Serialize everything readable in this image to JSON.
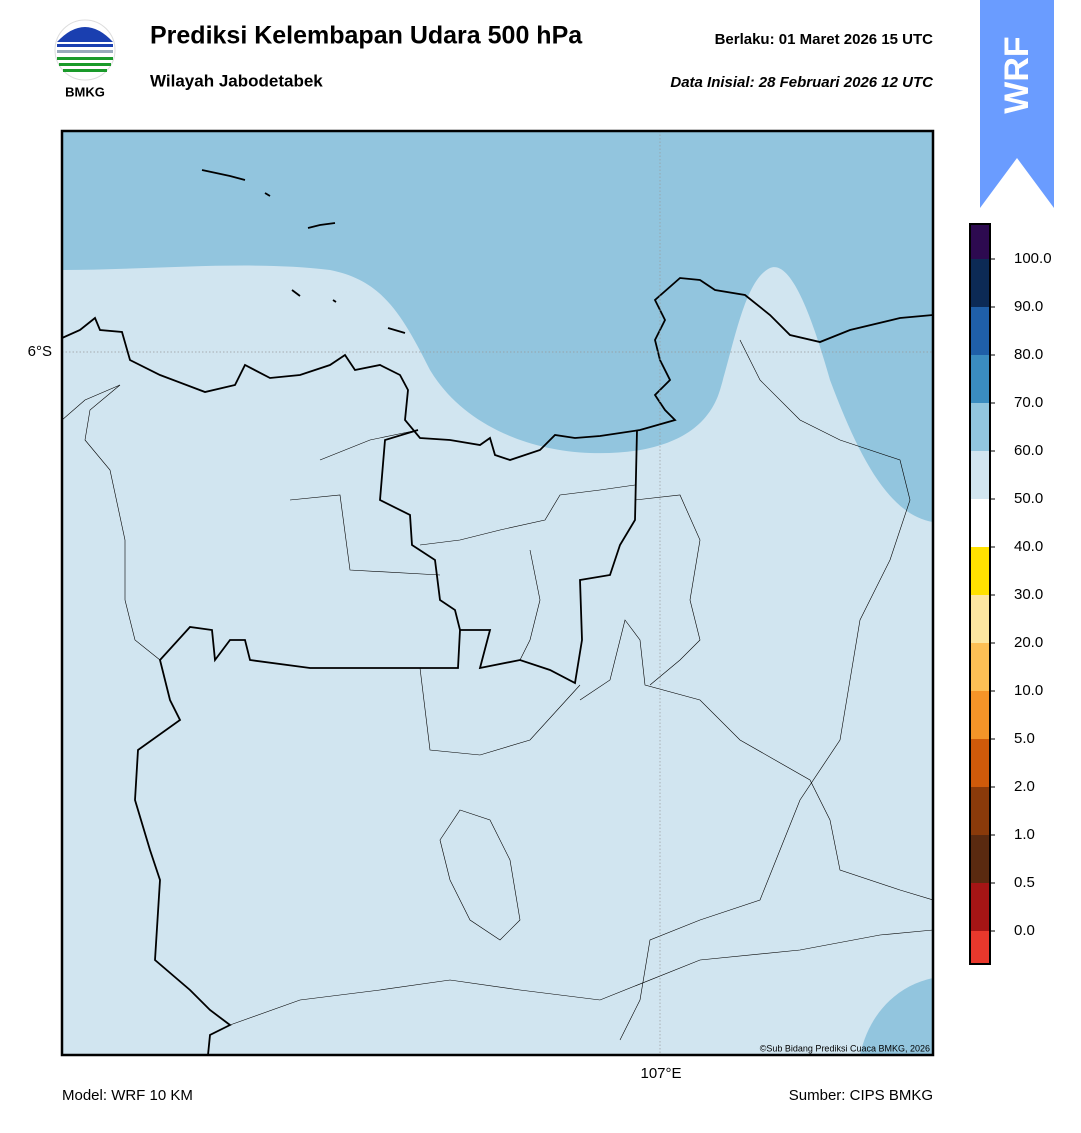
{
  "header": {
    "logo_text": "BMKG",
    "title": "Prediksi Kelembapan Udara 500 hPa",
    "subtitle": "Wilayah Jabodetabek",
    "valid": "Berlaku:  01 Maret 2026 15 UTC",
    "initial": "Data Inisial:  28 Februari 2026 12 UTC",
    "badge": "WRF"
  },
  "map": {
    "lat_label": "6°S",
    "lon_label": "107°E",
    "credit": "©Sub Bidang Prediksi Cuaca BMKG, 2026"
  },
  "colorbar": {
    "labels": [
      "0.0",
      "0.5",
      "1.0",
      "2.0",
      "5.0",
      "10.0",
      "20.0",
      "30.0",
      "40.0",
      "50.0",
      "60.0",
      "70.0",
      "80.0",
      "90.0",
      "100.0"
    ],
    "colors": [
      "#e8382c",
      "#a51515",
      "#5a2a10",
      "#8a3a0a",
      "#d05a0a",
      "#f59428",
      "#fdbf55",
      "#fde6a0",
      "#ffe100",
      "#ffffff",
      "#d1e5f0",
      "#92c5de",
      "#3a8cc0",
      "#1f5fa8",
      "#0c2a55",
      "#2d0a50"
    ]
  },
  "footer": {
    "model": "Model: WRF 10 KM",
    "source": "Sumber: CIPS BMKG"
  }
}
